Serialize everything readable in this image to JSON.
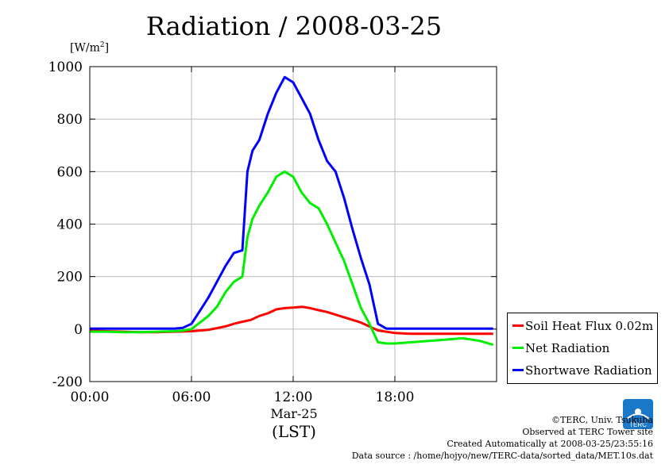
{
  "title": "Radiation / 2008-03-25",
  "unit_label": "[W/m",
  "unit_sup": "2",
  "unit_close": "]",
  "x_date_label": "Mar-25",
  "x_tz_label": "(LST)",
  "credits": {
    "line1": "©TERC, Univ. Tsukuba",
    "line2": "Observed at TERC Tower site",
    "line3": "Created Automatically at 2008-03-25/23:55:16",
    "line4": "Data source : /home/hojyo/new/TERC-data/sorted_data/MET.10s.dat"
  },
  "logo_text": "TERC",
  "legend": {
    "items": [
      {
        "label": "Soil Heat Flux 0.02m",
        "color": "#ff0000"
      },
      {
        "label": "Net Radiation",
        "color": "#00ee00"
      },
      {
        "label": "Shortwave Radiation",
        "color": "#0000ff"
      }
    ]
  },
  "chart_data": {
    "type": "line",
    "title": "Radiation / 2008-03-25",
    "ylabel": "[W/m2]",
    "xlabel": "Mar-25 (LST)",
    "xlim": [
      0,
      24
    ],
    "ylim": [
      -200,
      1000
    ],
    "x_ticks": [
      0,
      6,
      12,
      18
    ],
    "x_tick_labels": [
      "00:00",
      "06:00",
      "12:00",
      "18:00"
    ],
    "y_ticks": [
      -200,
      0,
      200,
      400,
      600,
      800,
      1000
    ],
    "y_tick_labels": [
      "-200",
      "0",
      "200",
      "400",
      "600",
      "800",
      "1000"
    ],
    "grid": true,
    "legend_position": "right-bottom",
    "series": [
      {
        "name": "Soil Heat Flux 0.02m",
        "color": "#ff0000",
        "x": [
          0,
          1,
          2,
          3,
          4,
          5,
          6,
          7,
          8,
          8.5,
          9,
          9.5,
          10,
          10.5,
          11,
          11.5,
          12,
          12.5,
          13,
          13.5,
          14,
          15,
          16,
          17,
          18,
          19,
          20,
          21,
          22,
          23,
          23.8
        ],
        "y": [
          -5,
          -8,
          -10,
          -12,
          -12,
          -10,
          -8,
          -3,
          10,
          20,
          28,
          35,
          50,
          60,
          75,
          80,
          82,
          85,
          80,
          72,
          65,
          45,
          25,
          -5,
          -15,
          -18,
          -18,
          -18,
          -18,
          -18,
          -18
        ]
      },
      {
        "name": "Net Radiation",
        "color": "#00ee00",
        "x": [
          0,
          1,
          2,
          3,
          4,
          5,
          5.5,
          6,
          6.5,
          7,
          7.5,
          8,
          8.5,
          9,
          9.3,
          9.6,
          10,
          10.5,
          11,
          11.5,
          12,
          12.5,
          13,
          13.5,
          14,
          14.5,
          15,
          15.5,
          16,
          16.5,
          17,
          17.5,
          18,
          19,
          20,
          21,
          22,
          23,
          23.8
        ],
        "y": [
          -10,
          -10,
          -12,
          -12,
          -10,
          -8,
          -6,
          0,
          25,
          50,
          85,
          140,
          180,
          200,
          350,
          420,
          470,
          520,
          580,
          600,
          580,
          520,
          480,
          460,
          400,
          330,
          260,
          170,
          80,
          20,
          -50,
          -55,
          -55,
          -50,
          -45,
          -40,
          -35,
          -45,
          -60
        ]
      },
      {
        "name": "Shortwave Radiation",
        "color": "#0000ff",
        "x": [
          0,
          1,
          2,
          3,
          4,
          5,
          5.5,
          6,
          6.5,
          7,
          7.5,
          8,
          8.5,
          9,
          9.3,
          9.6,
          10,
          10.5,
          11,
          11.5,
          12,
          12.5,
          13,
          13.5,
          14,
          14.5,
          15,
          15.5,
          16,
          16.5,
          17,
          17.5,
          18,
          19,
          20,
          21,
          22,
          23,
          23.8
        ],
        "y": [
          2,
          2,
          2,
          2,
          2,
          2,
          5,
          20,
          70,
          120,
          180,
          240,
          290,
          300,
          600,
          680,
          720,
          820,
          900,
          960,
          940,
          880,
          820,
          720,
          640,
          600,
          500,
          380,
          270,
          170,
          20,
          2,
          2,
          2,
          2,
          2,
          2,
          2,
          2
        ]
      }
    ]
  }
}
